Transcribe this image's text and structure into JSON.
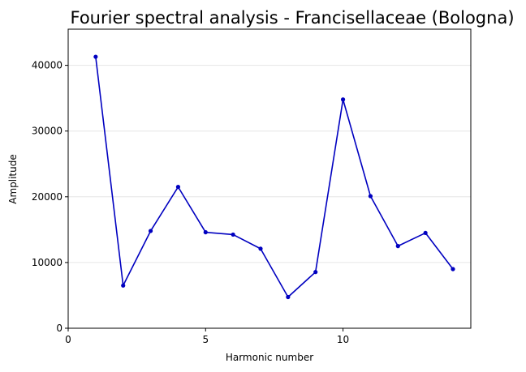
{
  "chart_data": {
    "type": "line",
    "title": "Fourier spectral analysis - Francisellaceae (Bologna)",
    "xlabel": "Harmonic number",
    "ylabel": "Amplitude",
    "xlim": [
      0,
      14.65
    ],
    "ylim": [
      0,
      45500
    ],
    "xticks": [
      0,
      5,
      10
    ],
    "yticks": [
      0,
      10000,
      20000,
      30000,
      40000
    ],
    "grid": "horizontal",
    "series": [
      {
        "x": [
          1,
          2,
          3,
          4,
          5,
          6,
          7,
          8,
          9,
          10,
          11,
          12,
          13,
          14
        ],
        "values": [
          41300,
          6500,
          14800,
          21500,
          14600,
          14250,
          12100,
          4750,
          8550,
          34800,
          20100,
          12500,
          14500,
          9000
        ],
        "color": "#0000c0"
      }
    ]
  }
}
